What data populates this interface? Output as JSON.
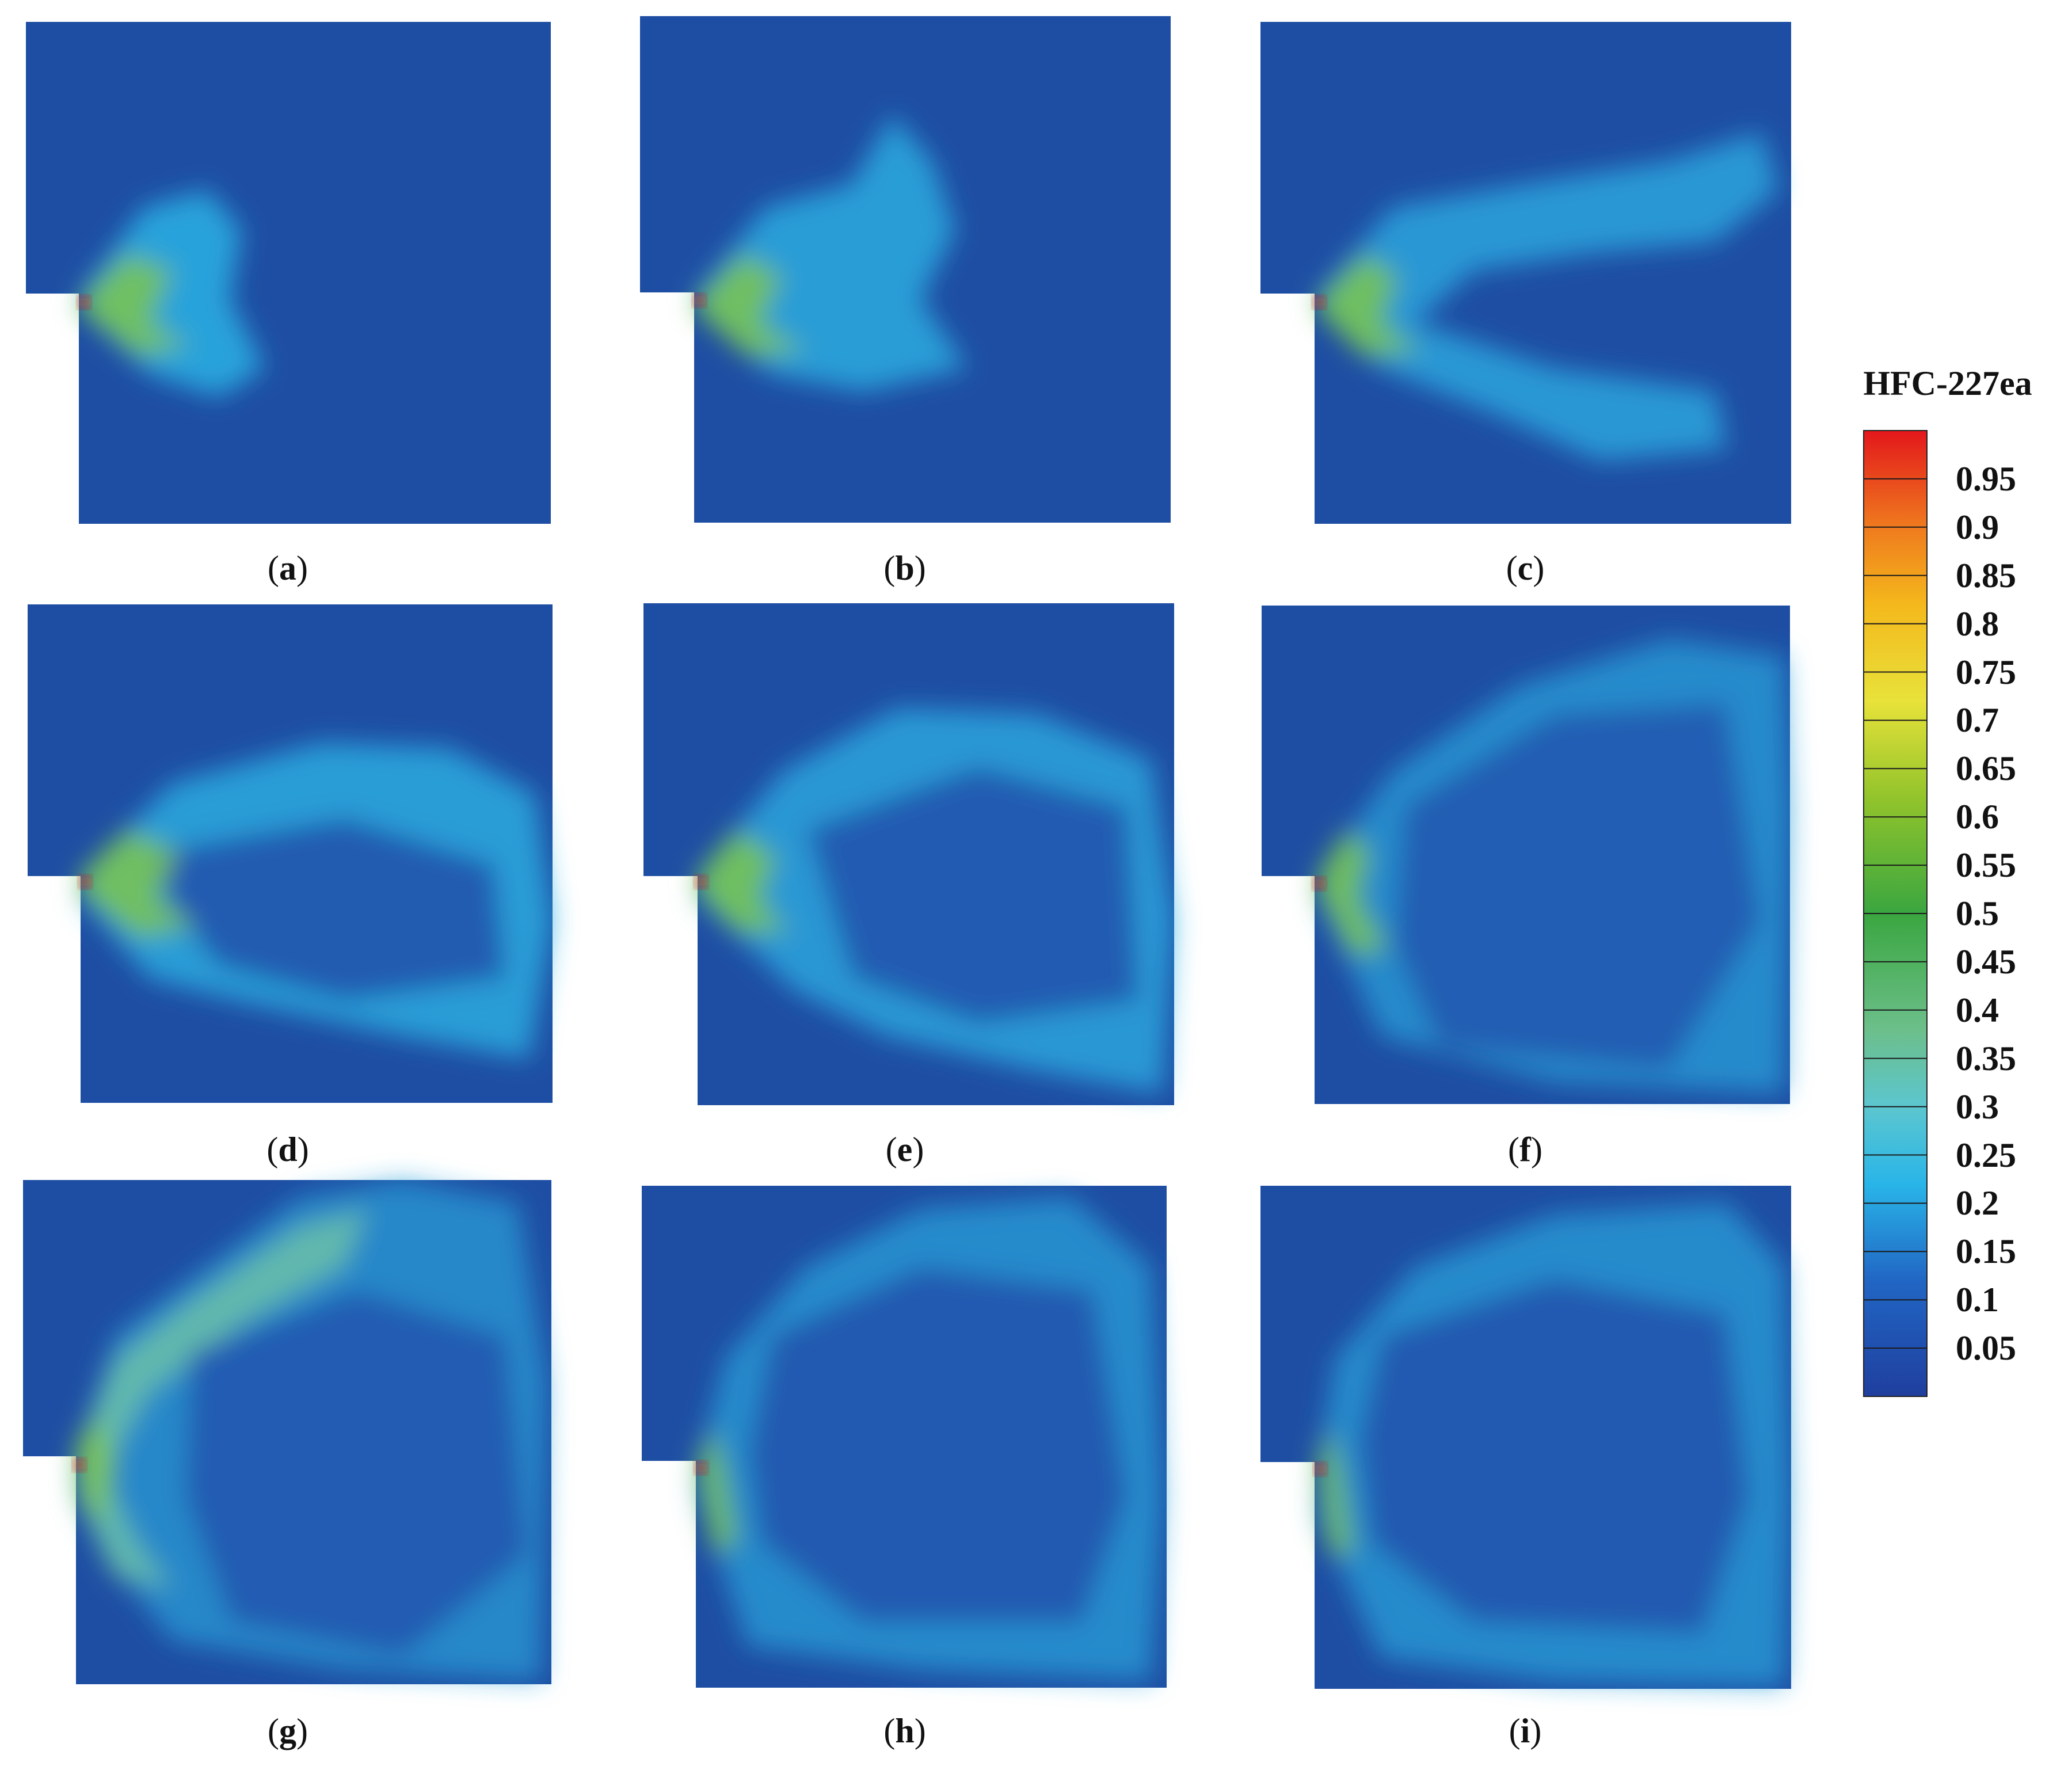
{
  "panels": [
    {
      "label": "a",
      "caption": [
        "(",
        "a",
        ")"
      ]
    },
    {
      "label": "b",
      "caption": [
        "(",
        "b",
        ")"
      ]
    },
    {
      "label": "c",
      "caption": [
        "(",
        "c",
        ")"
      ]
    },
    {
      "label": "d",
      "caption": [
        "(",
        "d",
        ")"
      ]
    },
    {
      "label": "e",
      "caption": [
        "(",
        "e",
        ")"
      ]
    },
    {
      "label": "f",
      "caption": [
        "(",
        "f",
        ")"
      ]
    },
    {
      "label": "g",
      "caption": [
        "(",
        "g",
        ")"
      ]
    },
    {
      "label": "h",
      "caption": [
        "(",
        "h",
        ")"
      ]
    },
    {
      "label": "i",
      "caption": [
        "(",
        "i",
        ")"
      ]
    }
  ],
  "colorbar": {
    "title": "HFC-227ea",
    "ticks": [
      "0.95",
      "0.9",
      "0.85",
      "0.8",
      "0.75",
      "0.7",
      "0.65",
      "0.6",
      "0.55",
      "0.5",
      "0.45",
      "0.4",
      "0.35",
      "0.3",
      "0.25",
      "0.2",
      "0.15",
      "0.1",
      "0.05"
    ],
    "range": [
      0,
      1
    ],
    "colors": {
      "low": "#1f4fa6",
      "mid_low": "#27b3e6",
      "mid": "#3aa64a",
      "mid_high": "#f2e63a",
      "high": "#e31a1a"
    }
  }
}
